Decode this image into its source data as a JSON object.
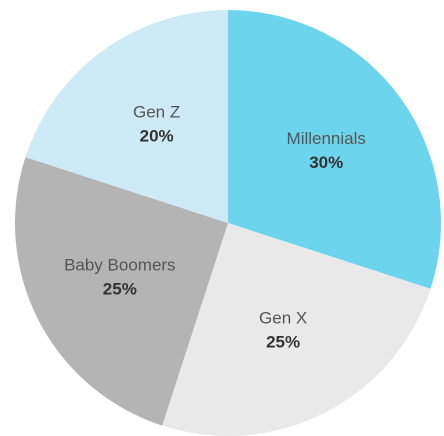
{
  "chart_data": {
    "type": "pie",
    "categories": [
      "Millennials",
      "Gen X",
      "Baby Boomers",
      "Gen Z"
    ],
    "values": [
      30,
      25,
      25,
      20
    ],
    "value_labels": [
      "30%",
      "25%",
      "25%",
      "20%"
    ],
    "colors": [
      "#6cd4ec",
      "#e9e9e9",
      "#b4b4b4",
      "#ceeaf7"
    ],
    "start_angle": 0,
    "direction": "clockwise"
  }
}
